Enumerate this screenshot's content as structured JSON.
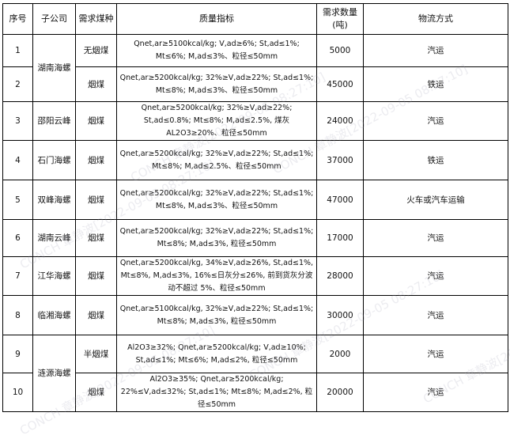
{
  "headers": [
    "序号",
    "子公司",
    "需求煤种",
    "质量指标",
    "需求数量\n(吨)",
    "物流方式"
  ],
  "header_qty_line1": "需求数量",
  "header_qty_line2": "(吨)",
  "rows": [
    {
      "no": "1",
      "company": "湖南海螺",
      "coal": "无烟煤",
      "quality": "Qnet,ar≥5100kcal/kg; V,ad≥6%; St,ad≤1%; Mt≤6%; M,ad≤3%、粒径≤50mm",
      "qty": "5000",
      "logistics": "汽运"
    },
    {
      "no": "2",
      "company": "",
      "coal": "烟煤",
      "quality": "Qnet,ar≥5200kcal/kg; 32%≥V,ad≥22%; St,ad≤1%; Mt≤8%; M,ad≤3%、粒径≤50mm",
      "qty": "45000",
      "logistics": "铁运"
    },
    {
      "no": "3",
      "company": "邵阳云峰",
      "coal": "烟煤",
      "quality": "Qnet,ar≥5200kcal/kg; 32%≥V,ad≥22%; St,ad≤0.8%; Mt≤8%; M,ad≤2.5%, 煤灰 AL2O3≥20%、粒径≤50mm",
      "qty": "24000",
      "logistics": "汽运"
    },
    {
      "no": "4",
      "company": "石门海螺",
      "coal": "烟煤",
      "quality": "Qnet,ar≥5200kcal/kg; 32%≥V,ad≥22%; St,ad≤1%; Mt≤8%; M,ad≤2.5%、粒径≤50mm",
      "qty": "37000",
      "logistics": "铁运"
    },
    {
      "no": "5",
      "company": "双峰海螺",
      "coal": "烟煤",
      "quality": "Qnet,ar≥5200kcal/kg; 32%≥V,ad≥22%; St,ad≤1%; Mt≤8%, M,ad≤3%、粒径≤50mm",
      "qty": "47000",
      "logistics": "火车或汽车运输"
    },
    {
      "no": "6",
      "company": "湖南云峰",
      "coal": "烟煤",
      "quality": "Qnet,ar≥5200kcal/kg; 32%≥V,ad≥22%; St,ad≤1%; Mt≤8%; M,ad≤3%, 粒径≤50mm",
      "qty": "17000",
      "logistics": "汽运"
    },
    {
      "no": "7",
      "company": "江华海螺",
      "coal": "烟煤",
      "quality": "Qnet,ar≥5200kcal/kg, 34%≥V,ad≥26%, St,ad≤1%, Mt≤8%, M,ad≤3%, 16%≤日灰分≤26%, 前到货灰分波动不超过 5%、粒径≤50mm",
      "qty": "28000",
      "logistics": "汽运"
    },
    {
      "no": "8",
      "company": "临湘海螺",
      "coal": "烟煤",
      "quality": "Qnet,ar≥5100kcal/kg, 32%≥V,ad≥22%; St,ad≤1%; Mt≤8%; M,ad≤3%, 粒径≤50mm",
      "qty": "30000",
      "logistics": "汽运"
    },
    {
      "no": "9",
      "company": "涟源海螺",
      "coal": "半烟煤",
      "quality": "Al2O3≥32%; Qnet,ar≥5200kcal/kg; V,ad≥10%; St,ad≤1%; Mt≤6%; M,ad≤2%, 粒径≤50mm",
      "qty": "2000",
      "logistics": "汽运"
    },
    {
      "no": "10",
      "company": "",
      "coal": "烟煤",
      "quality": "Al2O3≥35%; Qnet,ar≥5200kcal/kg; 22%≤V,ad≤32%; St,ad≤1%; Mt≤8%; M,ad≤2%, 粒径≤50mm",
      "qty": "20000",
      "logistics": "汽运"
    }
  ],
  "watermark": "CONCH 章静波[2022-09-05 08:27:10]"
}
